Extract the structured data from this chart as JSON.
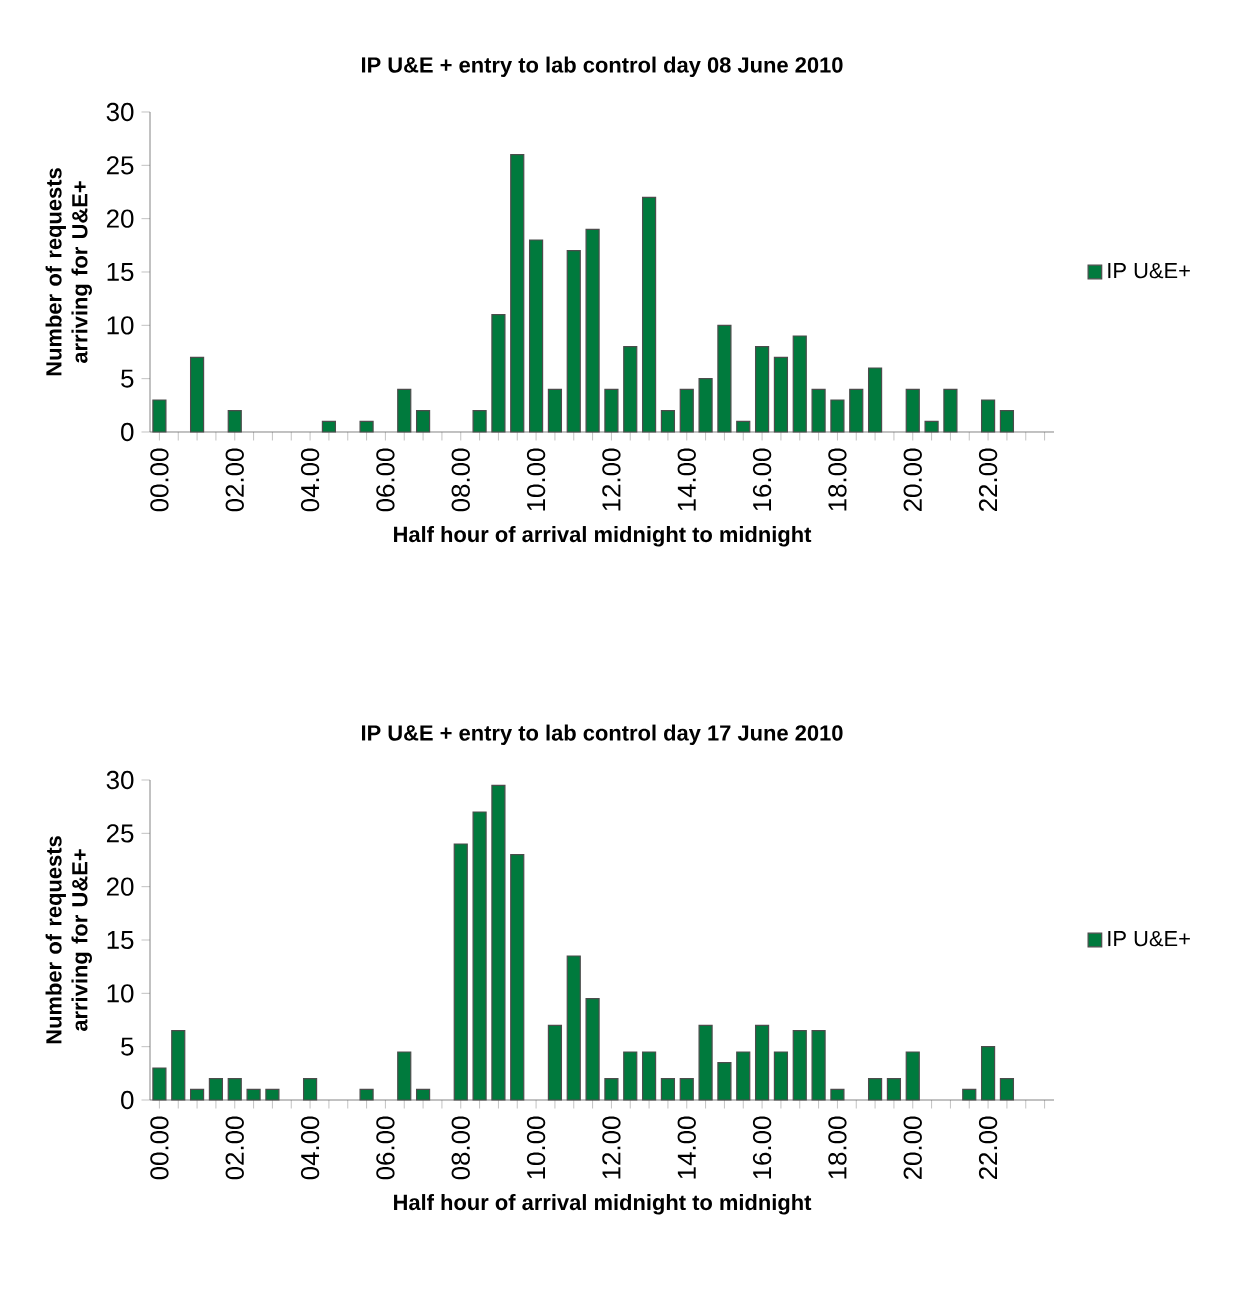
{
  "chart_data": [
    {
      "type": "bar",
      "title": "IP U&E + entry to lab control day 08 June 2010",
      "xlabel": "Half hour of arrival midnight to midnight",
      "ylabel": "Number of requests arriving for U&E+",
      "categories": [
        "00.00",
        null,
        null,
        null,
        "02.00",
        null,
        null,
        null,
        "04.00",
        null,
        null,
        null,
        "06.00",
        null,
        null,
        null,
        "08.00",
        null,
        null,
        null,
        "10.00",
        null,
        null,
        null,
        "12.00",
        null,
        null,
        null,
        "14.00",
        null,
        null,
        null,
        "16.00",
        null,
        null,
        null,
        "18.00",
        null,
        null,
        null,
        "20.00",
        null,
        null,
        null,
        "22.00",
        null,
        null,
        null
      ],
      "series": [
        {
          "name": "IP U&E+",
          "color": "#007a3d",
          "values": [
            3,
            0,
            7,
            0,
            2,
            0,
            0,
            0,
            0,
            1,
            0,
            1,
            0,
            4,
            2,
            0,
            0,
            2,
            11,
            26,
            18,
            4,
            17,
            19,
            4,
            8,
            22,
            2,
            4,
            5,
            10,
            1,
            8,
            7,
            9,
            4,
            3,
            4,
            6,
            0,
            4,
            1,
            4,
            0,
            3,
            2,
            0,
            0
          ]
        }
      ],
      "ylim": [
        0,
        30
      ],
      "yticks": [
        0,
        5,
        10,
        15,
        20,
        25,
        30
      ],
      "legend": "right"
    },
    {
      "type": "bar",
      "title": "IP U&E + entry to lab control day 17 June 2010",
      "xlabel": "Half hour of arrival midnight to midnight",
      "ylabel": "Number of requests arriving for U&E+",
      "categories": [
        "00.00",
        null,
        null,
        null,
        "02.00",
        null,
        null,
        null,
        "04.00",
        null,
        null,
        null,
        "06.00",
        null,
        null,
        null,
        "08.00",
        null,
        null,
        null,
        "10.00",
        null,
        null,
        null,
        "12.00",
        null,
        null,
        null,
        "14.00",
        null,
        null,
        null,
        "16.00",
        null,
        null,
        null,
        "18.00",
        null,
        null,
        null,
        "20.00",
        null,
        null,
        null,
        "22.00",
        null,
        null,
        null
      ],
      "series": [
        {
          "name": "IP U&E+",
          "color": "#007a3d",
          "values": [
            3,
            6.5,
            1,
            2,
            2,
            1,
            1,
            0,
            2,
            0,
            0,
            1,
            0,
            4.5,
            1,
            0,
            24,
            27,
            29.5,
            23,
            0,
            7,
            13.5,
            9.5,
            2,
            4.5,
            4.5,
            2,
            2,
            7,
            3.5,
            4.5,
            7,
            4.5,
            6.5,
            6.5,
            1,
            0,
            2,
            2,
            4.5,
            0,
            0,
            1,
            5,
            2,
            0,
            0
          ]
        }
      ],
      "ylim": [
        0,
        30
      ],
      "yticks": [
        0,
        5,
        10,
        15,
        20,
        25,
        30
      ],
      "legend": "right"
    }
  ]
}
